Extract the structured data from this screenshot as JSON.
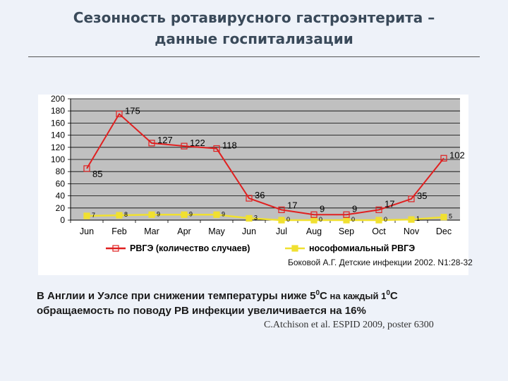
{
  "slide": {
    "title_line1": "Сезонность ротавирусного гастроэнтерита –",
    "title_line2": "данные госпитализации"
  },
  "chart_data": {
    "type": "line",
    "categories": [
      "Jun",
      "Feb",
      "Mar",
      "Apr",
      "May",
      "Jun",
      "Jul",
      "Aug",
      "Sep",
      "Oct",
      "Nov",
      "Dec"
    ],
    "ylim": [
      0,
      200
    ],
    "yticks": [
      0,
      20,
      40,
      60,
      80,
      100,
      120,
      140,
      160,
      180,
      200
    ],
    "grid": true,
    "legend_placement": "bottom",
    "series": [
      {
        "name": "РВГЭ (количество случаев)",
        "color": "#e02020",
        "values": [
          85,
          175,
          127,
          122,
          118,
          36,
          17,
          9,
          9,
          17,
          35,
          102
        ],
        "labels": [
          "85",
          "175",
          "127",
          "122",
          "118",
          "36",
          "17",
          "9",
          "9",
          "17",
          "35",
          "102"
        ]
      },
      {
        "name": "нософомиальный РВГЭ",
        "color": "#f0e030",
        "values": [
          7,
          8,
          9,
          9,
          9,
          3,
          0,
          0,
          0,
          0,
          1,
          5
        ],
        "labels": [
          "7",
          "8",
          "9",
          "9",
          "9",
          "3",
          "0",
          "0",
          "0",
          "0",
          "1",
          "5"
        ]
      }
    ]
  },
  "source_note": "Боковой А.Г. Детские инфекции 2002. N1:28-32",
  "body": {
    "line1_a": "В Англии и Уэлсе при снижении температуры ниже 5",
    "sup1": "0",
    "line1_b": "С",
    "line1_c": " на  каждый 1",
    "sup2": "0",
    "line1_d": "С",
    "line2": "обращаемость по поводу РВ инфекции увеличивается на 16%"
  },
  "citation": "C.Atchison et al. ESPID 2009, poster 6300"
}
